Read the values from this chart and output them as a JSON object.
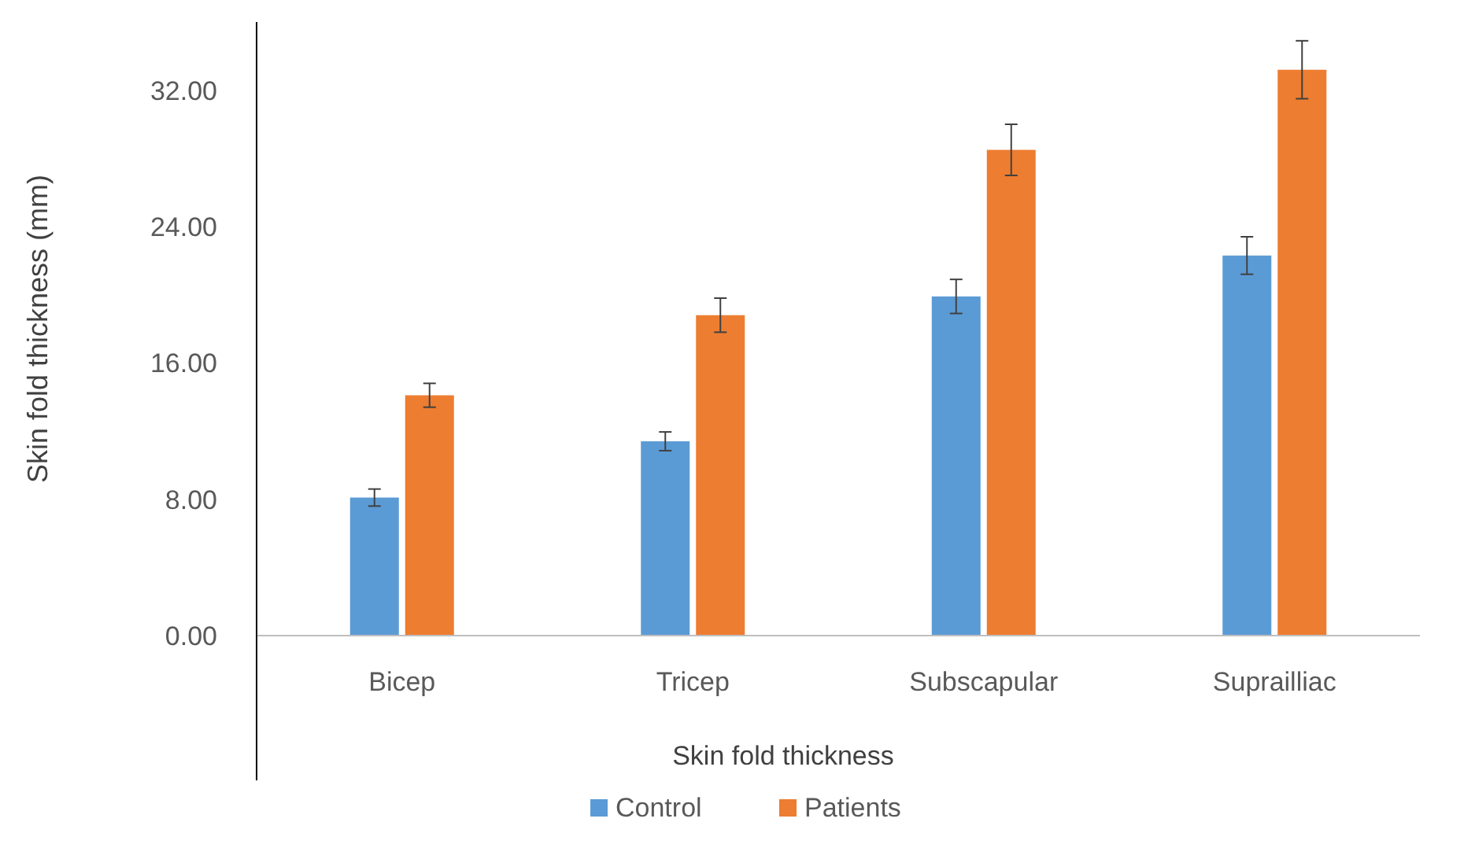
{
  "chart_data": {
    "type": "bar",
    "xlabel": "Skin fold thickness",
    "ylabel": "Skin fold thickness (mm)",
    "categories": [
      "Bicep",
      "Tricep",
      "Subscapular",
      "Suprailliac"
    ],
    "series": [
      {
        "name": "Control",
        "color": "#5b9bd5",
        "values": [
          8.1,
          11.4,
          19.9,
          22.3
        ],
        "errors": [
          0.5,
          0.55,
          1.0,
          1.1
        ]
      },
      {
        "name": "Patients",
        "color": "#ed7d31",
        "values": [
          14.1,
          18.8,
          28.5,
          33.2
        ],
        "errors": [
          0.7,
          1.0,
          1.5,
          1.7
        ]
      }
    ],
    "ylim": [
      0,
      36
    ],
    "yticks": [
      {
        "value": 0,
        "label": "0.00"
      },
      {
        "value": 8,
        "label": "8.00"
      },
      {
        "value": 16,
        "label": "16.00"
      },
      {
        "value": 24,
        "label": "24.00"
      },
      {
        "value": 32,
        "label": "32.00"
      }
    ],
    "grid": false,
    "legend": "bottom"
  }
}
